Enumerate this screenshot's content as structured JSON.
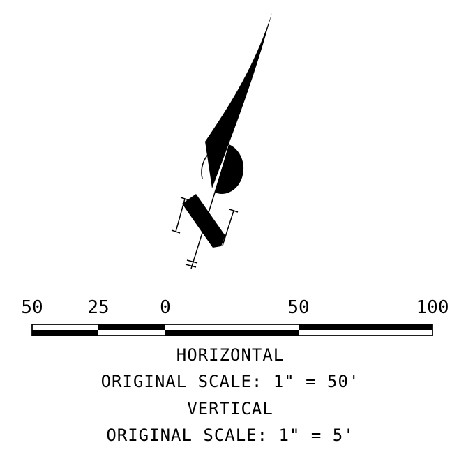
{
  "scale_bar": {
    "tick_labels": [
      "50",
      "25",
      "0",
      "50",
      "100"
    ],
    "units": "feet"
  },
  "captions": {
    "horizontal_title": "HORIZONTAL",
    "horizontal_scale": "ORIGINAL SCALE: 1\" = 50'",
    "vertical_title": "VERTICAL",
    "vertical_scale": "ORIGINAL SCALE: 1\" = 5'"
  },
  "north_arrow": {
    "symbol": "north-arrow-icon",
    "color": "#000000"
  }
}
